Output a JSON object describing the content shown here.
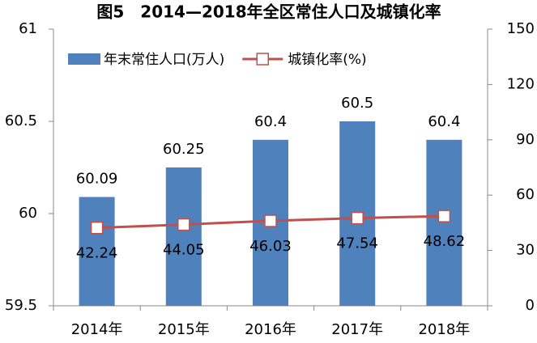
{
  "chart_data": {
    "type": "bar",
    "title": "图5　2014—2018年全区常住人口及城镇化率",
    "categories": [
      "2014年",
      "2015年",
      "2016年",
      "2017年",
      "2018年"
    ],
    "series": [
      {
        "name": "年末常住人口(万人)",
        "type": "bar",
        "color": "#4f81bd",
        "values": [
          60.09,
          60.25,
          60.4,
          60.5,
          60.4
        ]
      },
      {
        "name": "城镇化率(%)",
        "type": "line",
        "axis": "y2",
        "color": "#c0504d",
        "values": [
          42.24,
          44.05,
          46.03,
          47.54,
          48.62
        ]
      }
    ],
    "ylim": [
      59.5,
      61
    ],
    "yticks": [
      59.5,
      60,
      60.5,
      61
    ],
    "y2lim": [
      0,
      150
    ],
    "y2ticks": [
      0,
      30,
      60,
      90,
      120,
      150
    ],
    "legend": "top-left",
    "grid": false
  }
}
